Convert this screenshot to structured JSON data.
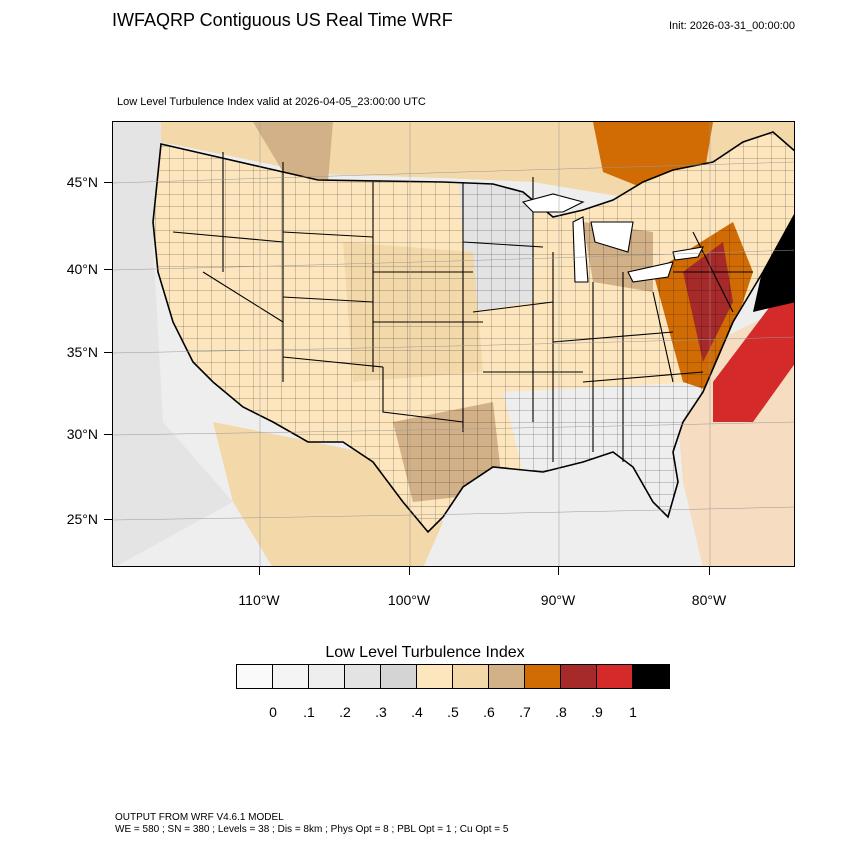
{
  "header": {
    "title": "IWFAQRP Contiguous US Real Time WRF",
    "init": "Init: 2026-03-31_00:00:00",
    "subtitle": "Low Level Turbulence Index valid at 2026-04-05_23:00:00 UTC"
  },
  "map": {
    "lat_labels": [
      "45°N",
      "40°N",
      "35°N",
      "30°N",
      "25°N"
    ],
    "lon_labels": [
      "110°W",
      "100°W",
      "90°W",
      "80°W"
    ]
  },
  "colorbar": {
    "title": "Low Level Turbulence Index",
    "colors": [
      "#fafafa",
      "#f4f4f4",
      "#eeeeee",
      "#e3e3e3",
      "#d4d4d4",
      "#fde6bd",
      "#f3d8aa",
      "#d2b188",
      "#d16c05",
      "#a62a2a",
      "#d42a2a",
      "#000000"
    ],
    "labels": [
      "0",
      ".1",
      ".2",
      ".3",
      ".4",
      ".5",
      ".6",
      ".7",
      ".8",
      ".9",
      "1"
    ]
  },
  "footer": {
    "line1": "OUTPUT FROM WRF V4.6.1 MODEL",
    "line2": "WE = 580 ; SN = 380 ; Levels = 38 ; Dis = 8km ; Phys Opt = 8 ; PBL Opt = 1 ; Cu Opt = 5"
  }
}
